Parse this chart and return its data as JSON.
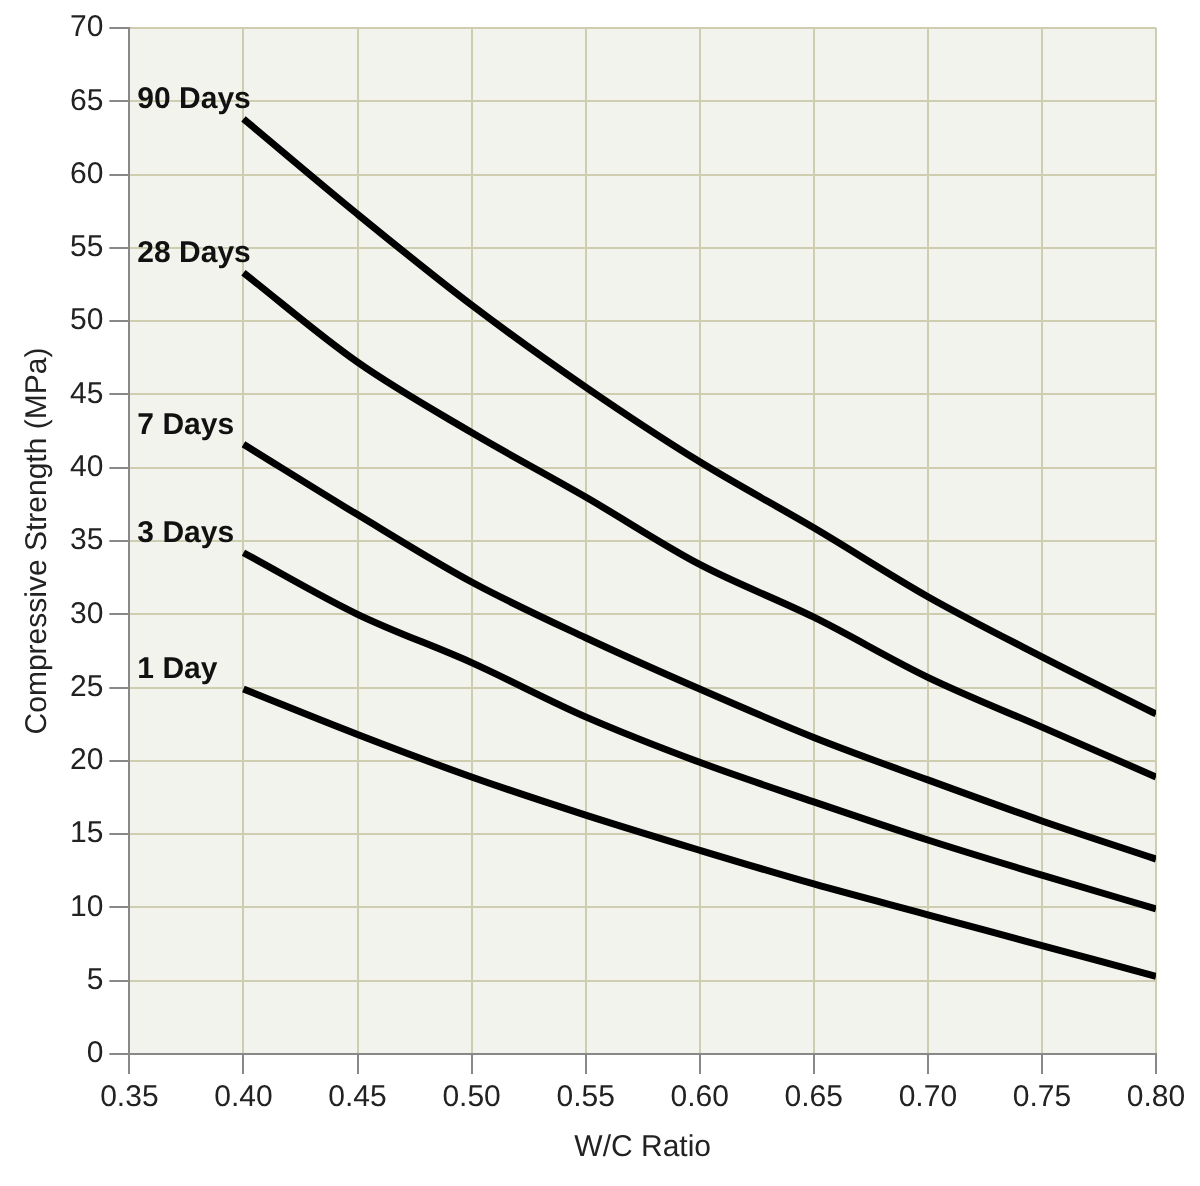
{
  "chart_data": {
    "type": "line",
    "xlabel": "W/C Ratio",
    "ylabel": "Compressive Strength (MPa)",
    "x": [
      0.4,
      0.45,
      0.5,
      0.55,
      0.6,
      0.65,
      0.7,
      0.75,
      0.8
    ],
    "series": [
      {
        "name": "90 Days",
        "color": "#000000",
        "values": [
          63.8,
          57.3,
          51.1,
          45.5,
          40.4,
          35.9,
          31.2,
          27.1,
          23.2
        ]
      },
      {
        "name": "28 Days",
        "color": "#000000",
        "values": [
          53.3,
          47.2,
          42.4,
          38.0,
          33.4,
          29.8,
          25.7,
          22.3,
          18.9
        ]
      },
      {
        "name": "7 Days",
        "color": "#000000",
        "values": [
          41.6,
          36.8,
          32.2,
          28.4,
          24.9,
          21.6,
          18.7,
          15.9,
          13.3
        ]
      },
      {
        "name": "3 Days",
        "color": "#000000",
        "values": [
          34.2,
          30.0,
          26.7,
          23.0,
          19.9,
          17.2,
          14.6,
          12.2,
          9.9
        ]
      },
      {
        "name": "1 Day",
        "color": "#000000",
        "values": [
          24.9,
          21.8,
          18.9,
          16.3,
          13.9,
          11.6,
          9.5,
          7.4,
          5.3
        ]
      }
    ],
    "xlim": [
      0.35,
      0.8
    ],
    "xticks": [
      0.35,
      {
        "value": 0.4,
        "label": "0.40"
      },
      0.45,
      {
        "value": 0.5,
        "label": "0.50"
      },
      0.55,
      {
        "value": 0.6,
        "label": "0.60"
      },
      0.65,
      {
        "value": 0.7,
        "label": "0.70"
      },
      0.75,
      {
        "value": 0.8,
        "label": "0.80"
      }
    ],
    "ylim": [
      0,
      70
    ],
    "yticks": [
      0,
      5,
      10,
      15,
      20,
      25,
      30,
      35,
      40,
      45,
      50,
      55,
      60,
      65,
      70
    ],
    "grid": true,
    "legend": false,
    "marker": "none",
    "line_style": "solid"
  }
}
